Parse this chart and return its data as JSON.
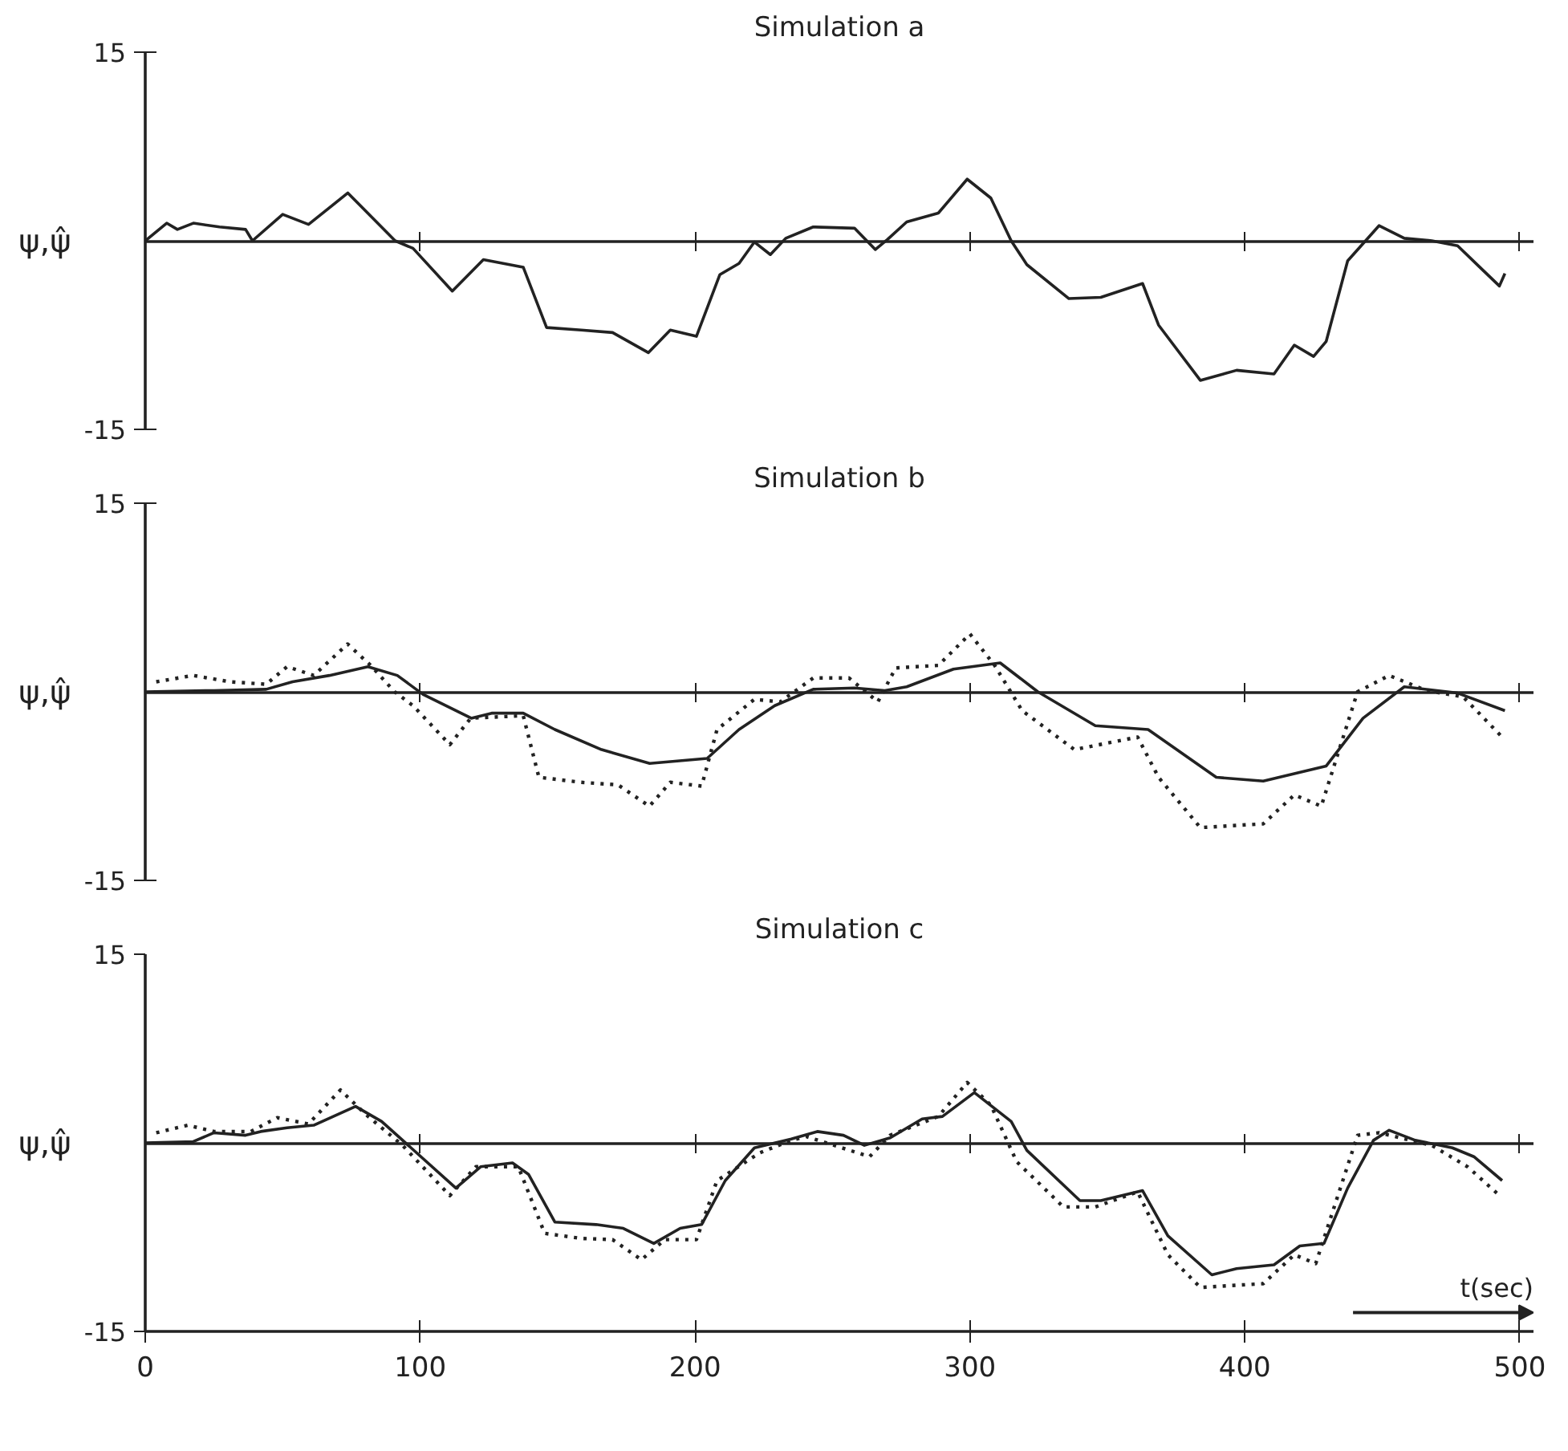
{
  "chart_data": [
    {
      "type": "line",
      "title": "Simulation a",
      "ylabel": "ψ,ψ̂",
      "xlim": [
        0,
        505
      ],
      "xticks": [
        0,
        100,
        200,
        300,
        400,
        500
      ],
      "ylim": [
        -15,
        15
      ],
      "yticks": [
        -15,
        15
      ],
      "tick_labels": "y",
      "series": [
        {
          "color": "#222222",
          "line_style": "solid",
          "x": [
            0,
            7.8,
            11.7,
            17.5,
            27,
            36.5,
            39,
            50,
            59.4,
            73.7,
            90.9,
            97.4,
            111.7,
            123,
            137.5,
            146,
            158.6,
            170,
            183,
            191,
            200.5,
            209,
            216,
            221.6,
            227.4,
            233,
            243,
            258,
            265.6,
            270,
            277,
            288.5,
            299,
            307.6,
            315,
            320.7,
            336,
            347.6,
            362.8,
            368.6,
            383.8,
            397,
            410.6,
            418,
            425,
            429.6,
            437.4,
            448.8,
            458,
            468,
            477.4,
            485,
            492.6,
            494.6
          ],
          "values": [
            0,
            1.4,
            0.9,
            1.4,
            1.1,
            0.9,
            0,
            2.1,
            1.3,
            3.8,
            0,
            -0.6,
            -4.0,
            -1.5,
            -2.1,
            -6.9,
            -7.1,
            -7.3,
            -8.9,
            -7.1,
            -7.6,
            -2.7,
            -1.8,
            -0.1,
            -1.1,
            0.2,
            1.1,
            1.0,
            -0.7,
            0.1,
            1.5,
            2.2,
            4.9,
            3.4,
            0,
            -1.9,
            -4.6,
            -4.5,
            -3.4,
            -6.7,
            -11.1,
            -10.3,
            -10.6,
            -8.3,
            -9.2,
            -8.0,
            -1.6,
            1.2,
            0.2,
            0,
            -0.4,
            -2.0,
            -3.6,
            -2.6
          ]
        }
      ]
    },
    {
      "type": "line",
      "title": "Simulation b",
      "ylabel": "ψ,ψ̂",
      "xlim": [
        0,
        505
      ],
      "xticks": [
        0,
        100,
        200,
        300,
        400,
        500
      ],
      "ylim": [
        -15,
        15
      ],
      "yticks": [
        -15,
        15
      ],
      "tick_labels": "y",
      "series": [
        {
          "color": "#222222",
          "line_style": "solid",
          "x": [
            0,
            25,
            44,
            53.6,
            67,
            81,
            91.7,
            101,
            118.6,
            126,
            137.5,
            149,
            166,
            183.5,
            204.4,
            216,
            229,
            243,
            258,
            269,
            277,
            294,
            311,
            324.7,
            345.6,
            364.8,
            389.6,
            406.7,
            429.6,
            443,
            458,
            477.4,
            494.6
          ],
          "values": [
            0,
            0.1,
            0.2,
            0.8,
            1.3,
            2.0,
            1.3,
            -0.2,
            -2.1,
            -1.7,
            -1.7,
            -3.0,
            -4.6,
            -5.7,
            -5.3,
            -3.0,
            -1.1,
            0.2,
            0.3,
            0.1,
            0.4,
            1.8,
            2.3,
            0,
            -2.7,
            -3.0,
            -6.8,
            -7.1,
            -5.9,
            -2.1,
            0.4,
            -0.1,
            -1.5
          ]
        },
        {
          "color": "#222222",
          "line_style": "dotted",
          "x": [
            4,
            17.5,
            30.7,
            44,
            51.6,
            61.3,
            73.6,
            82,
            90.7,
            97.4,
            110.8,
            118.4,
            137.5,
            143.2,
            158.6,
            172,
            183.4,
            191,
            202.4,
            208,
            221.6,
            231,
            243,
            256,
            266.5,
            273,
            288.5,
            300,
            309,
            319,
            338,
            361,
            368.6,
            383.8,
            406.7,
            418,
            427.8,
            441,
            452.5,
            466,
            479.4,
            493.6
          ],
          "values": [
            0.8,
            1.3,
            0.8,
            0.6,
            2.0,
            1.3,
            3.8,
            2.1,
            0,
            -1.1,
            -4.2,
            -2.1,
            -1.9,
            -6.8,
            -7.2,
            -7.4,
            -9.1,
            -7.2,
            -7.5,
            -3.0,
            -0.6,
            -0.8,
            1.1,
            1.1,
            -0.8,
            1.9,
            2.1,
            4.6,
            2.1,
            -1.5,
            -4.6,
            -3.6,
            -6.8,
            -10.8,
            -10.5,
            -8.2,
            -9.1,
            0,
            1.3,
            0.1,
            -0.4,
            -3.6
          ]
        }
      ]
    },
    {
      "type": "line",
      "title": "Simulation c",
      "ylabel": "ψ,ψ̂",
      "xlabel": "t(sec)",
      "xlim": [
        0,
        505
      ],
      "xticks": [
        0,
        100,
        200,
        300,
        400,
        500
      ],
      "ylim": [
        -15,
        15
      ],
      "yticks": [
        -15,
        15
      ],
      "series": [
        {
          "color": "#222222",
          "line_style": "solid",
          "x": [
            0,
            17.5,
            25,
            36.5,
            42,
            51.6,
            61.3,
            76.5,
            86,
            96.7,
            113,
            122,
            133.6,
            139.4,
            149,
            164,
            173.9,
            185,
            194.6,
            202.4,
            211,
            221.6,
            235,
            244.5,
            254,
            261.6,
            271,
            282.6,
            290,
            301.6,
            315,
            320.7,
            340,
            347.6,
            362.8,
            372,
            388,
            397,
            410.6,
            420,
            428.8,
            437.4,
            446.8,
            452.5,
            462,
            475.5,
            483.3,
            493.6
          ],
          "values": [
            0,
            0.1,
            0.8,
            0.6,
            0.9,
            1.2,
            1.4,
            2.9,
            1.7,
            -0.4,
            -3.6,
            -1.9,
            -1.6,
            -2.5,
            -6.3,
            -6.5,
            -6.8,
            -8.0,
            -6.8,
            -6.5,
            -3.0,
            -0.4,
            0.3,
            0.9,
            0.6,
            -0.2,
            0.4,
            1.9,
            2.1,
            4.0,
            1.7,
            -0.6,
            -4.6,
            -4.6,
            -3.8,
            -7.4,
            -10.5,
            -10.0,
            -9.7,
            -8.2,
            -8.0,
            -3.6,
            0.2,
            1.0,
            0.2,
            -0.4,
            -1.1,
            -3.0
          ]
        },
        {
          "color": "#222222",
          "line_style": "dotted",
          "x": [
            4,
            15.5,
            25,
            38.4,
            48,
            59.4,
            71,
            80,
            93.6,
            110.8,
            120.3,
            135.7,
            145.3,
            158.6,
            170,
            180.5,
            189,
            200.5,
            208,
            223.5,
            235,
            240.5,
            263.5,
            271,
            288.5,
            299,
            307.6,
            317,
            334,
            345.6,
            361,
            372,
            383.8,
            406.7,
            418,
            425.8,
            441,
            448.8,
            468,
            481,
            491.7
          ],
          "values": [
            0.8,
            1.4,
            0.9,
            0.9,
            2.0,
            1.5,
            4.2,
            2.3,
            -0.2,
            -4.2,
            -1.9,
            -1.9,
            -7.2,
            -7.6,
            -7.7,
            -9.3,
            -7.7,
            -7.7,
            -3.0,
            -0.8,
            0.2,
            0.5,
            -1.1,
            0.6,
            2.1,
            4.8,
            3.0,
            -1.5,
            -5.1,
            -5.1,
            -3.9,
            -8.9,
            -11.5,
            -11.2,
            -8.9,
            -9.6,
            0.6,
            0.8,
            -0.2,
            -1.9,
            -4.0
          ]
        }
      ]
    }
  ]
}
